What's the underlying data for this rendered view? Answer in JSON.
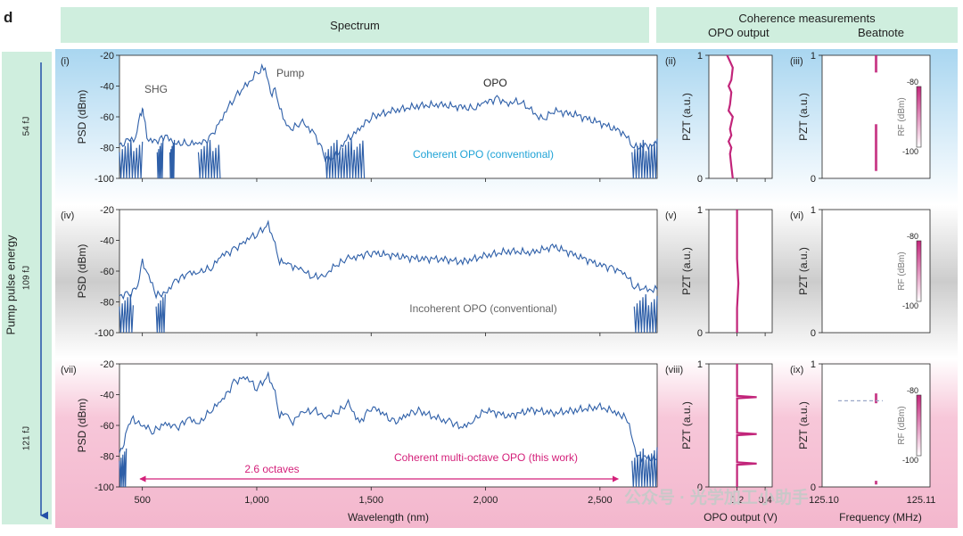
{
  "panel_letter": "d",
  "header": {
    "spectrum": "Spectrum",
    "coherence": "Coherence measurements",
    "opo_output": "OPO output",
    "beatnote": "Beatnote"
  },
  "side": {
    "label": "Pump pulse energy",
    "energies": [
      "54 fJ",
      "109 fJ",
      "121 fJ"
    ]
  },
  "watermark": "公众号 · 光学加工小助手",
  "colors": {
    "spectrum": "#2e5fa8",
    "pzt": "#c2257a",
    "header_bg": "#cfeede",
    "arrow": "#2451a8",
    "rf_max": "#c2257a",
    "rf_min": "#ffffff"
  },
  "chart_data": [
    {
      "type": "line",
      "id": "i",
      "tag": "(i)",
      "xlabel": "",
      "ylabel": "PSD (dBm)",
      "xlim": [
        400,
        2750
      ],
      "ylim": [
        -100,
        -20
      ],
      "yticks": [
        -20,
        -40,
        -60,
        -80,
        -100
      ],
      "xticks": [
        500,
        1000,
        1500,
        2000,
        2500
      ],
      "xtick_labels": [],
      "annotations": [
        "SHG",
        "Pump",
        "OPO"
      ],
      "caption": "Coherent OPO (conventional)",
      "x": [
        400,
        420,
        470,
        490,
        500,
        505,
        520,
        560,
        600,
        650,
        700,
        750,
        800,
        850,
        900,
        950,
        1000,
        1030,
        1050,
        1060,
        1080,
        1100,
        1130,
        1150,
        1200,
        1250,
        1300,
        1330,
        1400,
        1450,
        1500,
        1600,
        1700,
        1800,
        1900,
        1950,
        2000,
        2050,
        2100,
        2150,
        2200,
        2250,
        2300,
        2400,
        2500,
        2600,
        2650,
        2750
      ],
      "y": [
        -78,
        -76,
        -74,
        -60,
        -54,
        -58,
        -74,
        -76,
        -73,
        -77,
        -77,
        -78,
        -73,
        -60,
        -48,
        -40,
        -32,
        -28,
        -36,
        -45,
        -42,
        -55,
        -64,
        -68,
        -64,
        -70,
        -86,
        -88,
        -74,
        -68,
        -60,
        -56,
        -53,
        -52,
        -54,
        -54,
        -51,
        -48,
        -51,
        -50,
        -56,
        -62,
        -56,
        -59,
        -64,
        -70,
        -80,
        -78
      ],
      "noise_floors": [
        [
          400,
          500
        ],
        [
          565,
          590
        ],
        [
          620,
          640
        ],
        [
          745,
          840
        ],
        [
          1300,
          1470
        ],
        [
          2640,
          2750
        ]
      ]
    },
    {
      "type": "line",
      "id": "iv",
      "tag": "(iv)",
      "xlabel": "",
      "ylabel": "PSD (dBm)",
      "xlim": [
        400,
        2750
      ],
      "ylim": [
        -100,
        -20
      ],
      "yticks": [
        -20,
        -40,
        -60,
        -80,
        -100
      ],
      "xticks": [
        500,
        1000,
        1500,
        2000,
        2500
      ],
      "xtick_labels": [],
      "caption": "Incoherent OPO (conventional)",
      "x": [
        400,
        450,
        480,
        500,
        520,
        560,
        600,
        650,
        700,
        750,
        800,
        850,
        900,
        950,
        1000,
        1050,
        1080,
        1100,
        1130,
        1150,
        1200,
        1250,
        1300,
        1350,
        1400,
        1450,
        1500,
        1600,
        1700,
        1800,
        1900,
        2000,
        2100,
        2200,
        2300,
        2400,
        2500,
        2550,
        2600,
        2650,
        2700,
        2750
      ],
      "y": [
        -76,
        -74,
        -70,
        -54,
        -60,
        -76,
        -74,
        -66,
        -62,
        -60,
        -58,
        -50,
        -46,
        -40,
        -36,
        -30,
        -42,
        -54,
        -55,
        -56,
        -60,
        -64,
        -62,
        -56,
        -52,
        -50,
        -48,
        -50,
        -52,
        -52,
        -54,
        -50,
        -47,
        -48,
        -44,
        -50,
        -56,
        -58,
        -60,
        -70,
        -72,
        -72
      ],
      "noise_floors": [
        [
          400,
          460
        ],
        [
          560,
          600
        ],
        [
          2650,
          2750
        ]
      ]
    },
    {
      "type": "line",
      "id": "vii",
      "tag": "(vii)",
      "xlabel": "Wavelength (nm)",
      "ylabel": "PSD (dBm)",
      "xlim": [
        400,
        2750
      ],
      "ylim": [
        -100,
        -20
      ],
      "yticks": [
        -20,
        -40,
        -60,
        -80,
        -100
      ],
      "xticks": [
        500,
        1000,
        1500,
        2000,
        2500
      ],
      "xtick_labels": [
        "500",
        "1,000",
        "1,500",
        "2,000",
        "2,500"
      ],
      "caption": "Coherent multi-octave OPO (this work)",
      "span_label": "2.6 octaves",
      "span": [
        490,
        2580
      ],
      "x": [
        400,
        420,
        440,
        460,
        500,
        550,
        600,
        650,
        700,
        750,
        800,
        850,
        900,
        950,
        1000,
        1050,
        1080,
        1100,
        1130,
        1150,
        1200,
        1250,
        1300,
        1350,
        1400,
        1450,
        1500,
        1550,
        1600,
        1650,
        1700,
        1800,
        1850,
        1900,
        1950,
        2000,
        2100,
        2200,
        2300,
        2400,
        2500,
        2580,
        2620,
        2660,
        2750
      ],
      "y": [
        -78,
        -70,
        -60,
        -56,
        -60,
        -64,
        -58,
        -62,
        -56,
        -58,
        -50,
        -44,
        -32,
        -28,
        -36,
        -28,
        -38,
        -54,
        -52,
        -58,
        -52,
        -50,
        -54,
        -52,
        -46,
        -58,
        -48,
        -52,
        -58,
        -54,
        -50,
        -56,
        -58,
        -62,
        -56,
        -50,
        -54,
        -50,
        -52,
        -50,
        -48,
        -52,
        -56,
        -80,
        -82
      ],
      "noise_floors": [
        [
          400,
          430
        ],
        [
          2640,
          2750
        ]
      ]
    },
    {
      "type": "line",
      "id": "ii",
      "tag": "(ii)",
      "xlabel": "",
      "ylabel": "PZT (a.u.)",
      "xlim": [
        0,
        0.45
      ],
      "ylim": [
        0,
        1
      ],
      "yticks": [
        0,
        1
      ],
      "xticks": [
        0.2,
        0.4
      ],
      "xtick_labels": [],
      "y": [
        0,
        0.1,
        0.2,
        0.25,
        0.3,
        0.35,
        0.4,
        0.5,
        0.55,
        0.6,
        0.7,
        0.75,
        0.8,
        0.9,
        0.95,
        1
      ],
      "x": [
        0.17,
        0.16,
        0.15,
        0.16,
        0.14,
        0.16,
        0.15,
        0.17,
        0.14,
        0.15,
        0.16,
        0.14,
        0.16,
        0.17,
        0.15,
        0.13
      ]
    },
    {
      "type": "line",
      "id": "v",
      "tag": "(v)",
      "xlabel": "",
      "ylabel": "PZT (a.u.)",
      "xlim": [
        0,
        0.45
      ],
      "ylim": [
        0,
        1
      ],
      "yticks": [
        0,
        1
      ],
      "xticks": [
        0.2,
        0.4
      ],
      "xtick_labels": [],
      "y": [
        0,
        0.2,
        0.4,
        0.6,
        0.8,
        1
      ],
      "x": [
        0.2,
        0.2,
        0.21,
        0.2,
        0.2,
        0.2
      ]
    },
    {
      "type": "line",
      "id": "viii",
      "tag": "(viii)",
      "xlabel": "OPO output (V)",
      "ylabel": "PZT (a.u.)",
      "xlim": [
        0,
        0.45
      ],
      "ylim": [
        0,
        1
      ],
      "yticks": [
        0,
        1
      ],
      "xticks": [
        0.2,
        0.4
      ],
      "xtick_labels": [
        "0.2",
        "0.4"
      ],
      "y": [
        0,
        0.1,
        0.18,
        0.19,
        0.2,
        0.4,
        0.42,
        0.43,
        0.44,
        0.7,
        0.72,
        0.73,
        0.74,
        0.95,
        1
      ],
      "x": [
        0.2,
        0.2,
        0.2,
        0.34,
        0.2,
        0.2,
        0.2,
        0.34,
        0.2,
        0.2,
        0.2,
        0.34,
        0.2,
        0.2,
        0.2
      ]
    },
    {
      "type": "heatmap",
      "id": "iii",
      "tag": "(iii)",
      "xlabel": "",
      "ylabel": "PZT (a.u.)",
      "xlim": [
        125.1,
        125.11
      ],
      "ylim": [
        0,
        1
      ],
      "yticks": [
        0,
        1
      ],
      "xtick_labels": [],
      "colorbar": {
        "label": "RF (dBm)",
        "range": [
          -100,
          -80
        ],
        "ticks": [
          "-80",
          "-100"
        ]
      },
      "features": [
        {
          "x": 125.105,
          "y0": 0.86,
          "y1": 1.0
        },
        {
          "x": 125.105,
          "y0": 0.06,
          "y1": 0.44
        }
      ]
    },
    {
      "type": "heatmap",
      "id": "vi",
      "tag": "(vi)",
      "xlabel": "",
      "ylabel": "PZT (a.u.)",
      "xlim": [
        125.1,
        125.11
      ],
      "ylim": [
        0,
        1
      ],
      "yticks": [
        0,
        1
      ],
      "xtick_labels": [],
      "colorbar": {
        "label": "RF (dBm)",
        "range": [
          -100,
          -80
        ],
        "ticks": [
          "-80",
          "-100"
        ]
      },
      "features": []
    },
    {
      "type": "heatmap",
      "id": "ix",
      "tag": "(ix)",
      "xlabel": "Frequency (MHz)",
      "ylabel": "PZT (a.u.)",
      "xlim": [
        125.1,
        125.11
      ],
      "ylim": [
        0,
        1
      ],
      "yticks": [
        0,
        1
      ],
      "xtick_labels": [
        "125.10",
        "125.11"
      ],
      "colorbar": {
        "label": "RF (dBm)",
        "range": [
          -100,
          -80
        ],
        "ticks": [
          "-80",
          "-100"
        ]
      },
      "features": [
        {
          "x": 125.105,
          "y0": 0.68,
          "y1": 0.76,
          "line": 0.7
        },
        {
          "x": 125.105,
          "y0": 0.02,
          "y1": 0.05
        }
      ]
    }
  ]
}
